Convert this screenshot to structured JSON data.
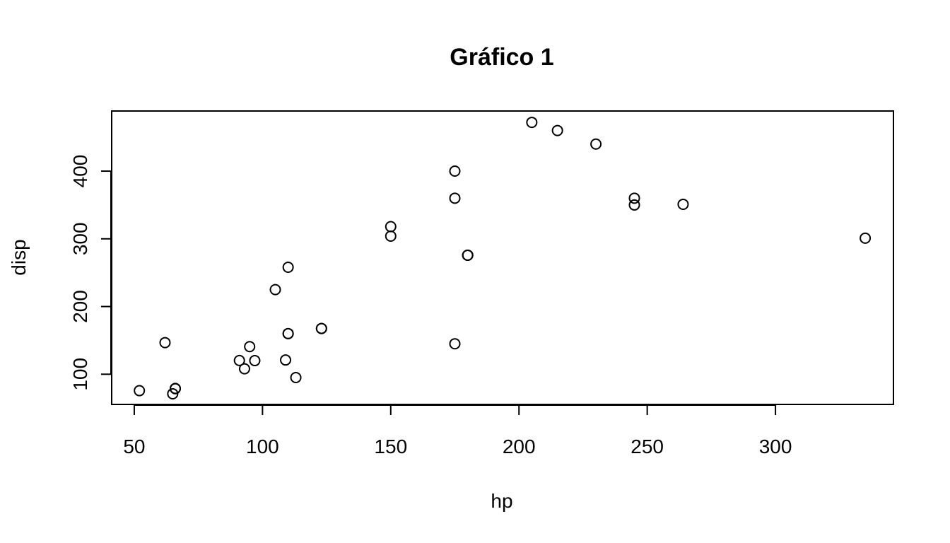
{
  "chart_data": {
    "type": "scatter",
    "title": "Gráfico 1",
    "xlabel": "hp",
    "ylabel": "disp",
    "xlim": [
      41.2,
      346.0
    ],
    "ylim": [
      55.4,
      488.8
    ],
    "xticks": [
      50,
      100,
      150,
      200,
      250,
      300
    ],
    "yticks": [
      100,
      200,
      300,
      400
    ],
    "grid": false,
    "legend": "none",
    "points": [
      {
        "x": 110,
        "y": 160
      },
      {
        "x": 110,
        "y": 160
      },
      {
        "x": 93,
        "y": 108
      },
      {
        "x": 110,
        "y": 258
      },
      {
        "x": 175,
        "y": 360
      },
      {
        "x": 105,
        "y": 225
      },
      {
        "x": 245,
        "y": 360
      },
      {
        "x": 62,
        "y": 146.7
      },
      {
        "x": 95,
        "y": 140.8
      },
      {
        "x": 123,
        "y": 167.6
      },
      {
        "x": 123,
        "y": 167.6
      },
      {
        "x": 180,
        "y": 275.8
      },
      {
        "x": 180,
        "y": 275.8
      },
      {
        "x": 180,
        "y": 275.8
      },
      {
        "x": 205,
        "y": 472
      },
      {
        "x": 215,
        "y": 460
      },
      {
        "x": 230,
        "y": 440
      },
      {
        "x": 66,
        "y": 78.7
      },
      {
        "x": 52,
        "y": 75.7
      },
      {
        "x": 65,
        "y": 71.1
      },
      {
        "x": 97,
        "y": 120.1
      },
      {
        "x": 150,
        "y": 318
      },
      {
        "x": 150,
        "y": 304
      },
      {
        "x": 245,
        "y": 350
      },
      {
        "x": 175,
        "y": 400
      },
      {
        "x": 66,
        "y": 79
      },
      {
        "x": 91,
        "y": 120.3
      },
      {
        "x": 113,
        "y": 95.1
      },
      {
        "x": 264,
        "y": 351
      },
      {
        "x": 175,
        "y": 145
      },
      {
        "x": 335,
        "y": 301
      },
      {
        "x": 109,
        "y": 121
      }
    ]
  }
}
